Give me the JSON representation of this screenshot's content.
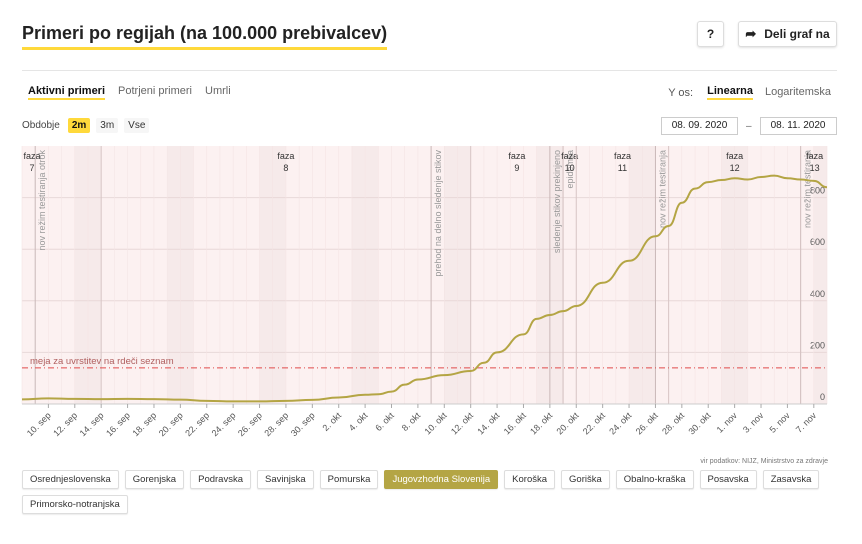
{
  "header": {
    "title": "Primeri po regijah (na 100.000 prebivalcev)",
    "help_label": "?",
    "share_label": "Deli graf na"
  },
  "tabs": [
    {
      "label": "Aktivni primeri",
      "active": true
    },
    {
      "label": "Potrjeni primeri",
      "active": false
    },
    {
      "label": "Umrli",
      "active": false
    }
  ],
  "yaxis_toggle": {
    "label": "Y os:",
    "options": [
      {
        "label": "Linearna",
        "active": true
      },
      {
        "label": "Logaritemska",
        "active": false
      }
    ]
  },
  "period": {
    "label": "Obdobje",
    "options": [
      {
        "label": "2m",
        "active": true
      },
      {
        "label": "3m",
        "active": false
      },
      {
        "label": "Vse",
        "active": false
      }
    ]
  },
  "date_range": {
    "from": "08. 09. 2020",
    "separator": "–",
    "to": "08. 11. 2020"
  },
  "source": "vir podatkov: NIJZ, Ministrstvo za zdravje",
  "regions": [
    {
      "label": "Osrednjeslovenska",
      "active": false
    },
    {
      "label": "Gorenjska",
      "active": false
    },
    {
      "label": "Podravska",
      "active": false
    },
    {
      "label": "Savinjska",
      "active": false
    },
    {
      "label": "Pomurska",
      "active": false
    },
    {
      "label": "Jugovzhodna Slovenija",
      "active": true
    },
    {
      "label": "Koroška",
      "active": false
    },
    {
      "label": "Goriška",
      "active": false
    },
    {
      "label": "Obalno-kraška",
      "active": false
    },
    {
      "label": "Posavska",
      "active": false
    },
    {
      "label": "Zasavska",
      "active": false
    },
    {
      "label": "Primorsko-notranjska",
      "active": false
    }
  ],
  "colors": {
    "accent": "#ffd93b",
    "series": "#b4a544",
    "threshold": "#e04b4b",
    "phase_bg": "#fcf1f1",
    "weekend_bg": "#f2e6e6"
  },
  "chart_data": {
    "type": "line",
    "x_start": "2020-09-08",
    "x_end": "2020-11-08",
    "ylim": [
      0,
      1000
    ],
    "yticks": [
      0,
      200,
      400,
      600,
      800
    ],
    "xticks": [
      "10. sep",
      "12. sep",
      "14. sep",
      "16. sep",
      "18. sep",
      "20. sep",
      "22. sep",
      "24. sep",
      "26. sep",
      "28. sep",
      "30. sep",
      "2. okt",
      "4. okt",
      "6. okt",
      "8. okt",
      "10. okt",
      "12. okt",
      "14. okt",
      "16. okt",
      "18. okt",
      "20. okt",
      "22. okt",
      "24. okt",
      "26. okt",
      "28. okt",
      "30. okt",
      "1. nov",
      "3. nov",
      "5. nov",
      "7. nov"
    ],
    "xtick_dates": [
      "2020-09-10",
      "2020-09-12",
      "2020-09-14",
      "2020-09-16",
      "2020-09-18",
      "2020-09-20",
      "2020-09-22",
      "2020-09-24",
      "2020-09-26",
      "2020-09-28",
      "2020-09-30",
      "2020-10-02",
      "2020-10-04",
      "2020-10-06",
      "2020-10-08",
      "2020-10-10",
      "2020-10-12",
      "2020-10-14",
      "2020-10-16",
      "2020-10-18",
      "2020-10-20",
      "2020-10-22",
      "2020-10-24",
      "2020-10-26",
      "2020-10-28",
      "2020-10-30",
      "2020-11-01",
      "2020-11-03",
      "2020-11-05",
      "2020-11-07"
    ],
    "series": [
      {
        "name": "Jugovzhodna Slovenija",
        "x": [
          "2020-09-08",
          "2020-09-10",
          "2020-09-12",
          "2020-09-14",
          "2020-09-16",
          "2020-09-18",
          "2020-09-20",
          "2020-09-22",
          "2020-09-24",
          "2020-09-26",
          "2020-09-28",
          "2020-09-30",
          "2020-10-02",
          "2020-10-04",
          "2020-10-05",
          "2020-10-06",
          "2020-10-07",
          "2020-10-08",
          "2020-10-10",
          "2020-10-12",
          "2020-10-13",
          "2020-10-14",
          "2020-10-16",
          "2020-10-17",
          "2020-10-18",
          "2020-10-19",
          "2020-10-20",
          "2020-10-22",
          "2020-10-24",
          "2020-10-26",
          "2020-10-27",
          "2020-10-28",
          "2020-10-29",
          "2020-10-30",
          "2020-10-31",
          "2020-11-01",
          "2020-11-02",
          "2020-11-03",
          "2020-11-04",
          "2020-11-05",
          "2020-11-06",
          "2020-11-07",
          "2020-11-08"
        ],
        "y": [
          18,
          22,
          20,
          19,
          20,
          19,
          17,
          12,
          10,
          10,
          12,
          16,
          25,
          36,
          38,
          48,
          75,
          95,
          112,
          128,
          160,
          200,
          270,
          330,
          345,
          360,
          380,
          470,
          555,
          650,
          690,
          780,
          835,
          860,
          868,
          875,
          870,
          880,
          885,
          875,
          870,
          865,
          840
        ]
      }
    ],
    "threshold": {
      "label": "meja za uvrstitev na rdeči seznam",
      "value": 140
    },
    "phases": [
      {
        "label": "faza",
        "number": "7",
        "start": "2020-09-08"
      },
      {
        "label": "faza",
        "number": "8",
        "start": "2020-09-14"
      },
      {
        "label": "faza",
        "number": "9",
        "start": "2020-10-12"
      },
      {
        "label": "faza",
        "number": "10",
        "start": "2020-10-19"
      },
      {
        "label": "faza",
        "number": "11",
        "start": "2020-10-20"
      },
      {
        "label": "faza",
        "number": "12",
        "start": "2020-10-27"
      },
      {
        "label": "faza",
        "number": "13",
        "start": "2020-11-06"
      }
    ],
    "annotations": [
      {
        "text": "nov režim testiranja otrok",
        "date": "2020-09-09"
      },
      {
        "text": "prehod na delno sledenje stikov",
        "date": "2020-10-09"
      },
      {
        "text": "sledenje stikov prekinjeno",
        "date": "2020-10-18"
      },
      {
        "text": "epidemija",
        "date": "2020-10-19"
      },
      {
        "text": "nov režim testiranja",
        "date": "2020-10-26"
      },
      {
        "text": "nov režim testiranja",
        "date": "2020-11-06"
      }
    ]
  }
}
